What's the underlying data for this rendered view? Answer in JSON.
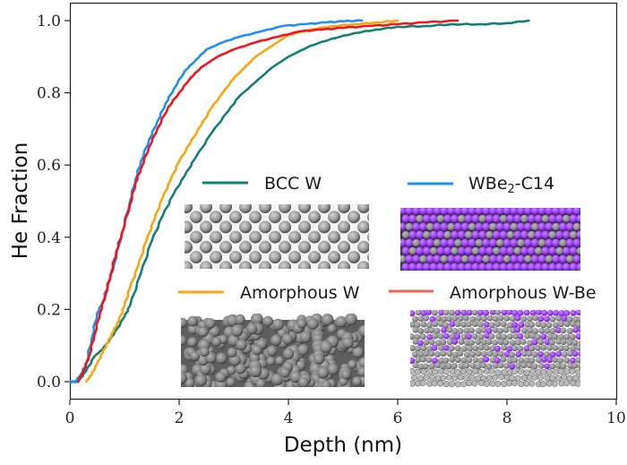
{
  "chart_data": {
    "type": "line",
    "title": "",
    "xlabel": "Depth (nm)",
    "ylabel": "He Fraction",
    "xlim": [
      0,
      10
    ],
    "ylim": [
      -0.04,
      1.04
    ],
    "xticks": [
      0,
      2,
      4,
      6,
      8,
      10
    ],
    "xtick_labels": [
      "0",
      "2",
      "4",
      "6",
      "8",
      "10"
    ],
    "yticks": [
      0.0,
      0.2,
      0.4,
      0.6,
      0.8,
      1.0
    ],
    "ytick_labels": [
      "0.0",
      "0.2",
      "0.4",
      "0.6",
      "0.8",
      "1.0"
    ],
    "grid": false,
    "legend_placement": "center-right (inside plot, 2x2 grid with structure insets)",
    "series": [
      {
        "name": "BCC W",
        "color": "#138075",
        "inset": "bcc-w-structure",
        "x": [
          0.0,
          0.15,
          0.3,
          0.45,
          0.6,
          0.8,
          1.0,
          1.1,
          1.3,
          1.5,
          1.7,
          1.9,
          2.1,
          2.3,
          2.6,
          2.9,
          3.1,
          3.4,
          3.7,
          4.0,
          4.4,
          4.8,
          5.2,
          5.6,
          6.0,
          6.5,
          7.0,
          7.5,
          8.0,
          8.4
        ],
        "y": [
          0.0,
          0.0,
          0.03,
          0.07,
          0.09,
          0.13,
          0.18,
          0.21,
          0.3,
          0.39,
          0.46,
          0.52,
          0.57,
          0.62,
          0.69,
          0.75,
          0.79,
          0.83,
          0.87,
          0.9,
          0.93,
          0.95,
          0.965,
          0.975,
          0.983,
          0.985,
          0.99,
          0.99,
          0.993,
          1.0
        ]
      },
      {
        "name": "WBe2-C14",
        "label_base": "WBe",
        "label_sub": "2",
        "label_suffix": "-C14",
        "color": "#1e8ff5",
        "inset": "wbe2-c14-structure",
        "x": [
          0.0,
          0.1,
          0.2,
          0.3,
          0.4,
          0.5,
          0.6,
          0.7,
          0.8,
          0.95,
          1.1,
          1.2,
          1.3,
          1.45,
          1.6,
          1.75,
          1.9,
          2.1,
          2.3,
          2.5,
          2.8,
          3.1,
          3.5,
          3.9,
          4.3,
          4.7,
          5.0,
          5.35
        ],
        "y": [
          0.0,
          0.0,
          0.02,
          0.05,
          0.12,
          0.19,
          0.22,
          0.27,
          0.32,
          0.41,
          0.5,
          0.56,
          0.61,
          0.67,
          0.72,
          0.77,
          0.81,
          0.86,
          0.89,
          0.92,
          0.94,
          0.955,
          0.97,
          0.985,
          0.99,
          0.995,
          0.998,
          1.0
        ]
      },
      {
        "name": "Amorphous W",
        "color": "#fba60e",
        "inset": "amorphous-w-structure",
        "x": [
          0.3,
          0.4,
          0.5,
          0.6,
          0.7,
          0.8,
          0.9,
          1.0,
          1.1,
          1.25,
          1.4,
          1.55,
          1.7,
          1.85,
          2.0,
          2.2,
          2.4,
          2.6,
          2.8,
          3.0,
          3.2,
          3.4,
          3.7,
          4.0,
          4.4,
          4.8,
          5.2,
          5.6,
          6.0
        ],
        "y": [
          0.0,
          0.02,
          0.05,
          0.08,
          0.11,
          0.14,
          0.17,
          0.21,
          0.26,
          0.32,
          0.39,
          0.45,
          0.51,
          0.56,
          0.61,
          0.66,
          0.71,
          0.76,
          0.8,
          0.84,
          0.87,
          0.9,
          0.93,
          0.96,
          0.975,
          0.985,
          0.99,
          0.995,
          1.0
        ]
      },
      {
        "name": "Amorphous W-Be",
        "color": "#f2141c",
        "legend_color": "#f0654c",
        "inset": "amorphous-w-be-structure",
        "x": [
          0.15,
          0.25,
          0.35,
          0.45,
          0.55,
          0.65,
          0.75,
          0.85,
          0.95,
          1.1,
          1.2,
          1.3,
          1.45,
          1.6,
          1.8,
          2.0,
          2.2,
          2.4,
          2.7,
          3.0,
          3.4,
          3.8,
          4.2,
          4.6,
          5.0,
          5.5,
          6.0,
          6.5,
          7.1
        ],
        "y": [
          0.0,
          0.03,
          0.07,
          0.13,
          0.19,
          0.24,
          0.3,
          0.36,
          0.41,
          0.49,
          0.55,
          0.59,
          0.65,
          0.7,
          0.76,
          0.8,
          0.84,
          0.87,
          0.9,
          0.92,
          0.94,
          0.955,
          0.97,
          0.975,
          0.98,
          0.985,
          0.99,
          0.995,
          1.0
        ]
      }
    ]
  },
  "legend": {
    "items": [
      {
        "label": "BCC W"
      },
      {
        "label_base": "WBe",
        "label_sub": "2",
        "label_suffix": "-C14"
      },
      {
        "label": "Amorphous W"
      },
      {
        "label": "Amorphous W-Be"
      }
    ]
  },
  "colors": {
    "bcc_w_atom": "#8a8a8a",
    "be_atom": "#9a3cf0",
    "w_atom_grey": "#9b9b9b",
    "amorphous_w_bg": "#5e5e5e"
  }
}
